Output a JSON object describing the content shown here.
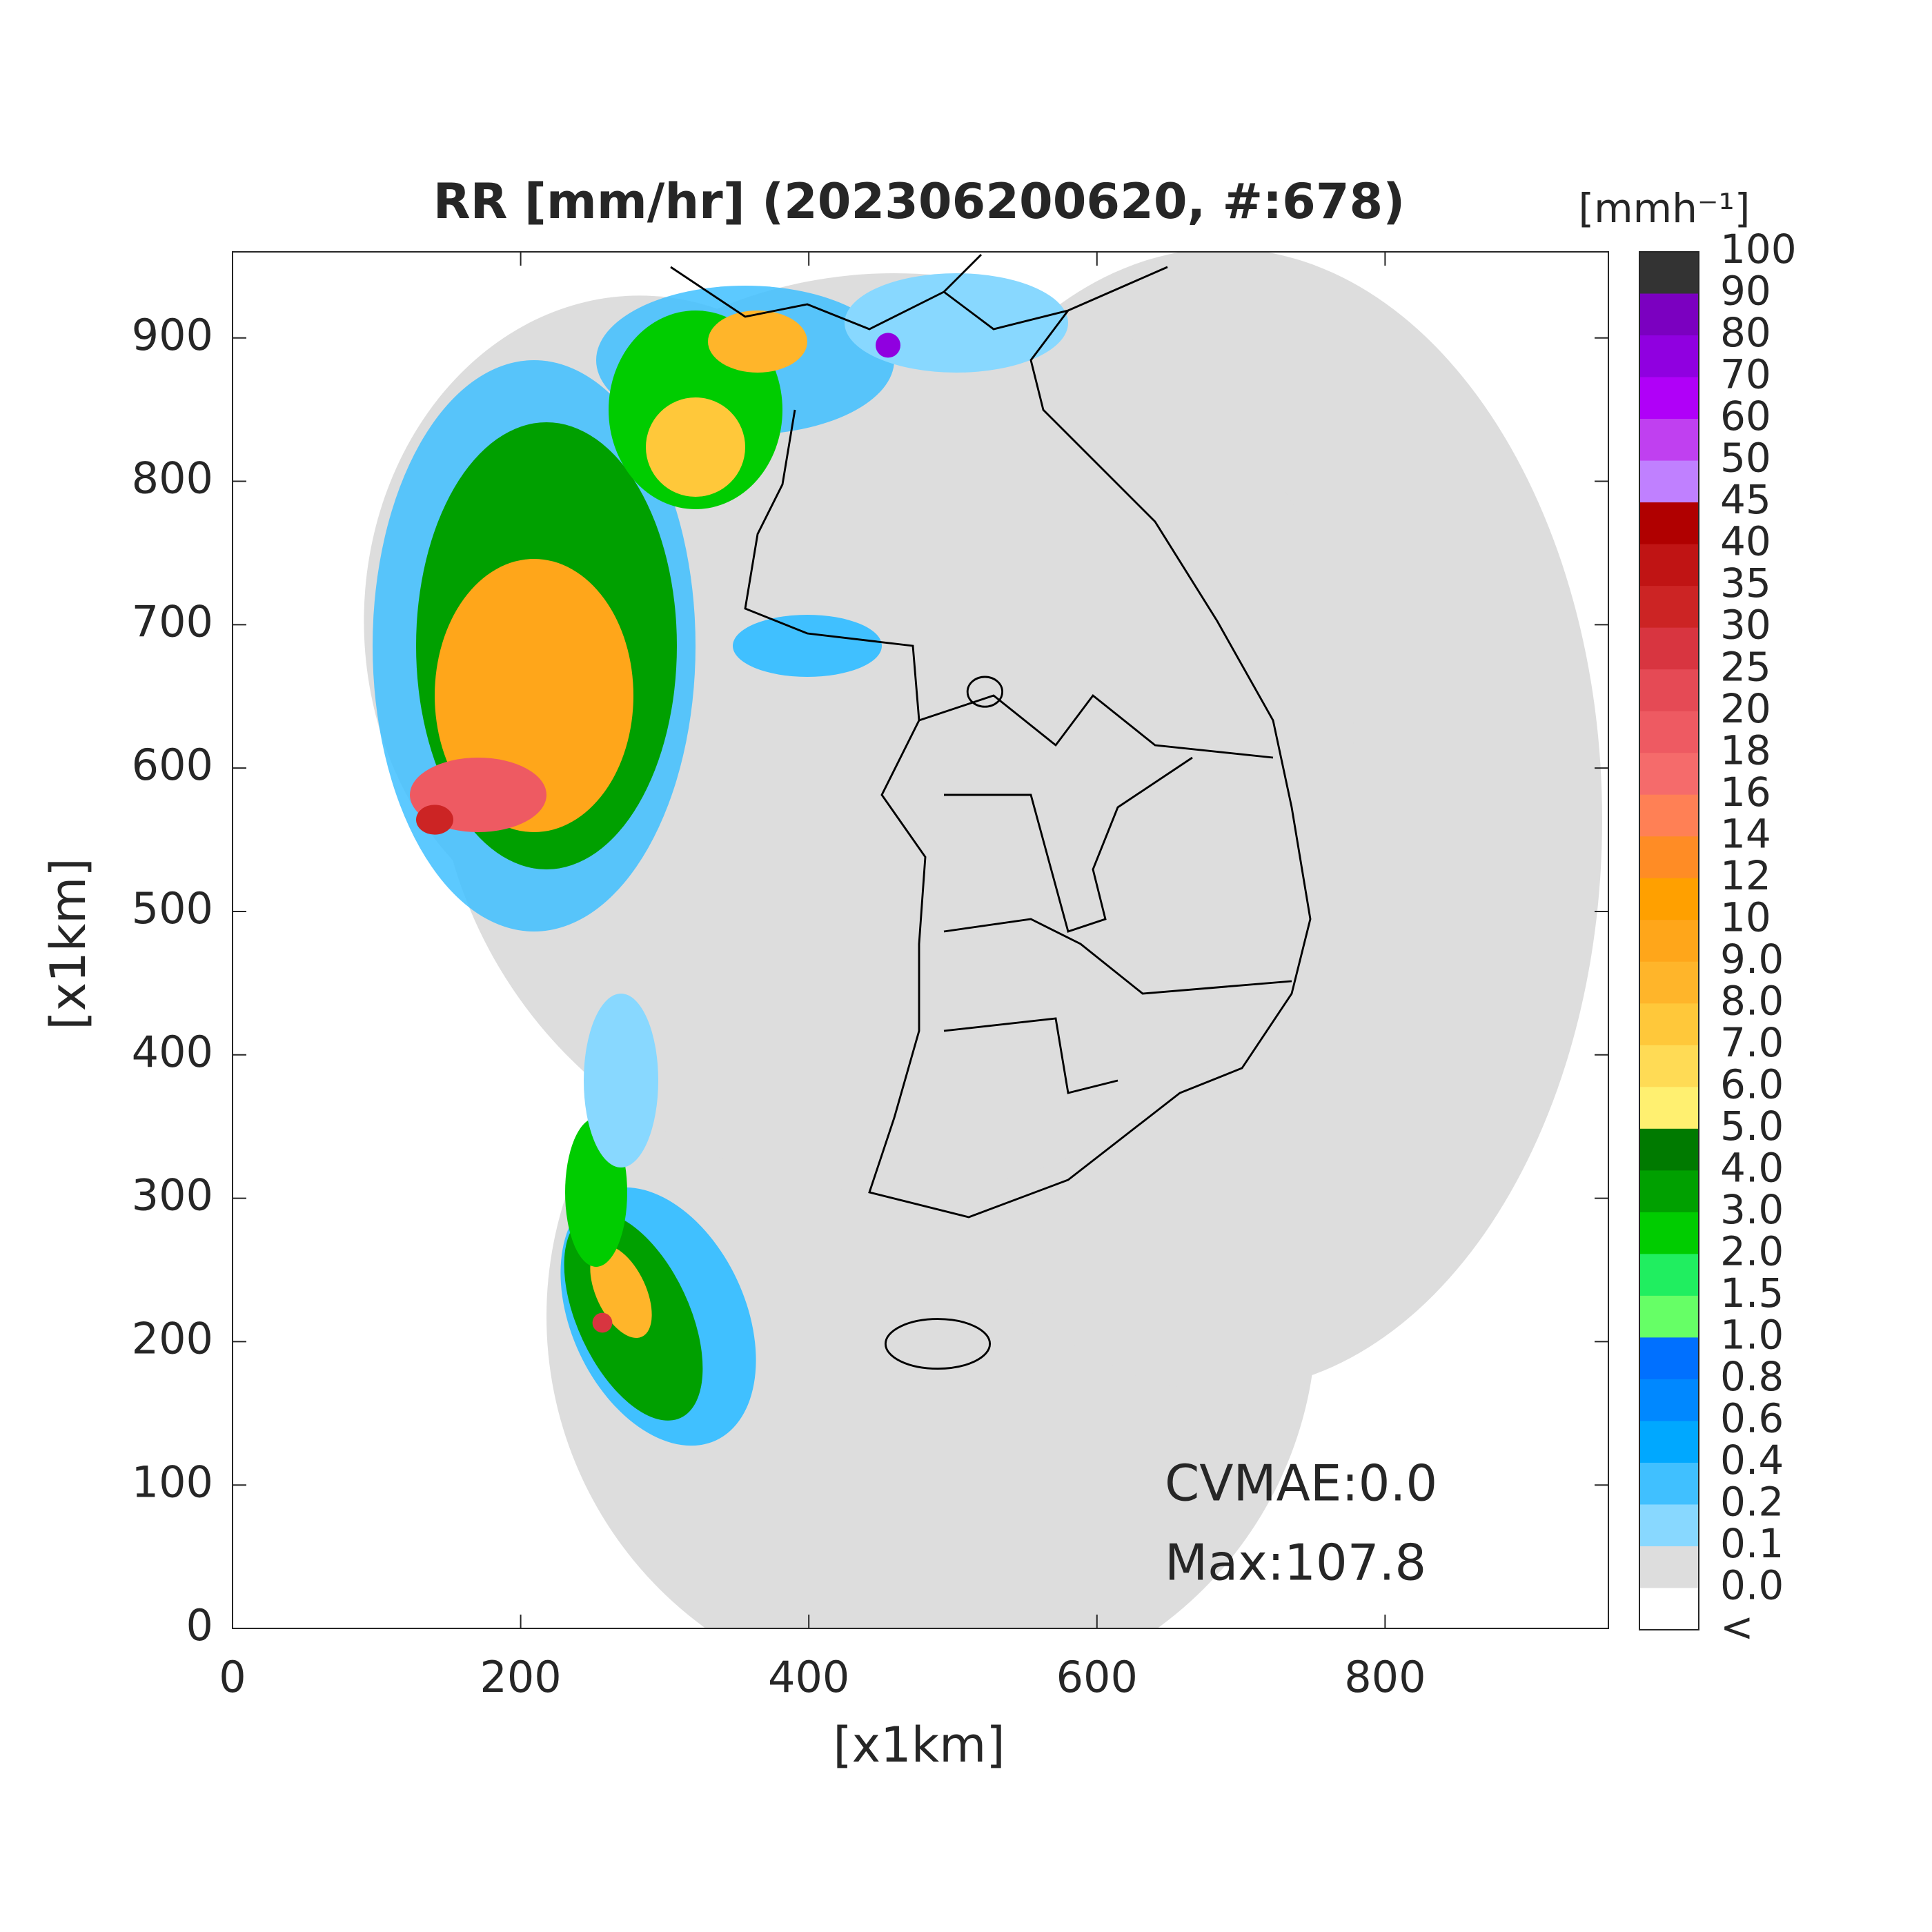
{
  "chart_data": {
    "type": "map",
    "title": "RR [mm/hr] (202306200620, #:678)",
    "xlabel": "[x1km]",
    "ylabel": "[x1km]",
    "xlim": [
      0,
      955
    ],
    "ylim": [
      0,
      960
    ],
    "xticks": [
      0,
      200,
      400,
      600,
      800
    ],
    "yticks": [
      0,
      100,
      200,
      300,
      400,
      500,
      600,
      700,
      800,
      900
    ],
    "annotations": [
      "CVMAE:0.0",
      "Max:107.8"
    ],
    "colorbar": {
      "label": "[mmh⁻¹]",
      "ticks": [
        100,
        90,
        80,
        70,
        60,
        50,
        45,
        40,
        35,
        30,
        25,
        20,
        18,
        16,
        14,
        12,
        10,
        {
          "value": 9,
          "label": "9.0"
        },
        {
          "value": 8,
          "label": "8.0"
        },
        {
          "value": 7,
          "label": "7.0"
        },
        {
          "value": 6,
          "label": "6.0"
        },
        {
          "value": 5,
          "label": "5.0"
        },
        {
          "value": 4,
          "label": "4.0"
        },
        {
          "value": 3,
          "label": "3.0"
        },
        {
          "value": 2,
          "label": "2.0"
        },
        1.5,
        {
          "value": 1,
          "label": "1.0"
        },
        0.8,
        0.6,
        0.4,
        0.2,
        0.1,
        {
          "value": 0,
          "label": "0.0"
        }
      ],
      "under_label": "<",
      "colors": [
        "#333333",
        "#7b00c0",
        "#9000e0",
        "#b000f8",
        "#c040f0",
        "#c080ff",
        "#b00000",
        "#c01414",
        "#cc2424",
        "#d83540",
        "#e54a55",
        "#ee5a62",
        "#f56b6b",
        "#ff8055",
        "#ff8c25",
        "#ffa000",
        "#ffa61a",
        "#ffb52a",
        "#ffc83a",
        "#ffdb55",
        "#fff070",
        "#007a00",
        "#00a000",
        "#00cc00",
        "#20ee60",
        "#66ff66",
        "#0070ff",
        "#0088ff",
        "#00a8ff",
        "#40c0ff",
        "#88d8ff",
        "#dddddd",
        "#ffffff"
      ]
    }
  }
}
